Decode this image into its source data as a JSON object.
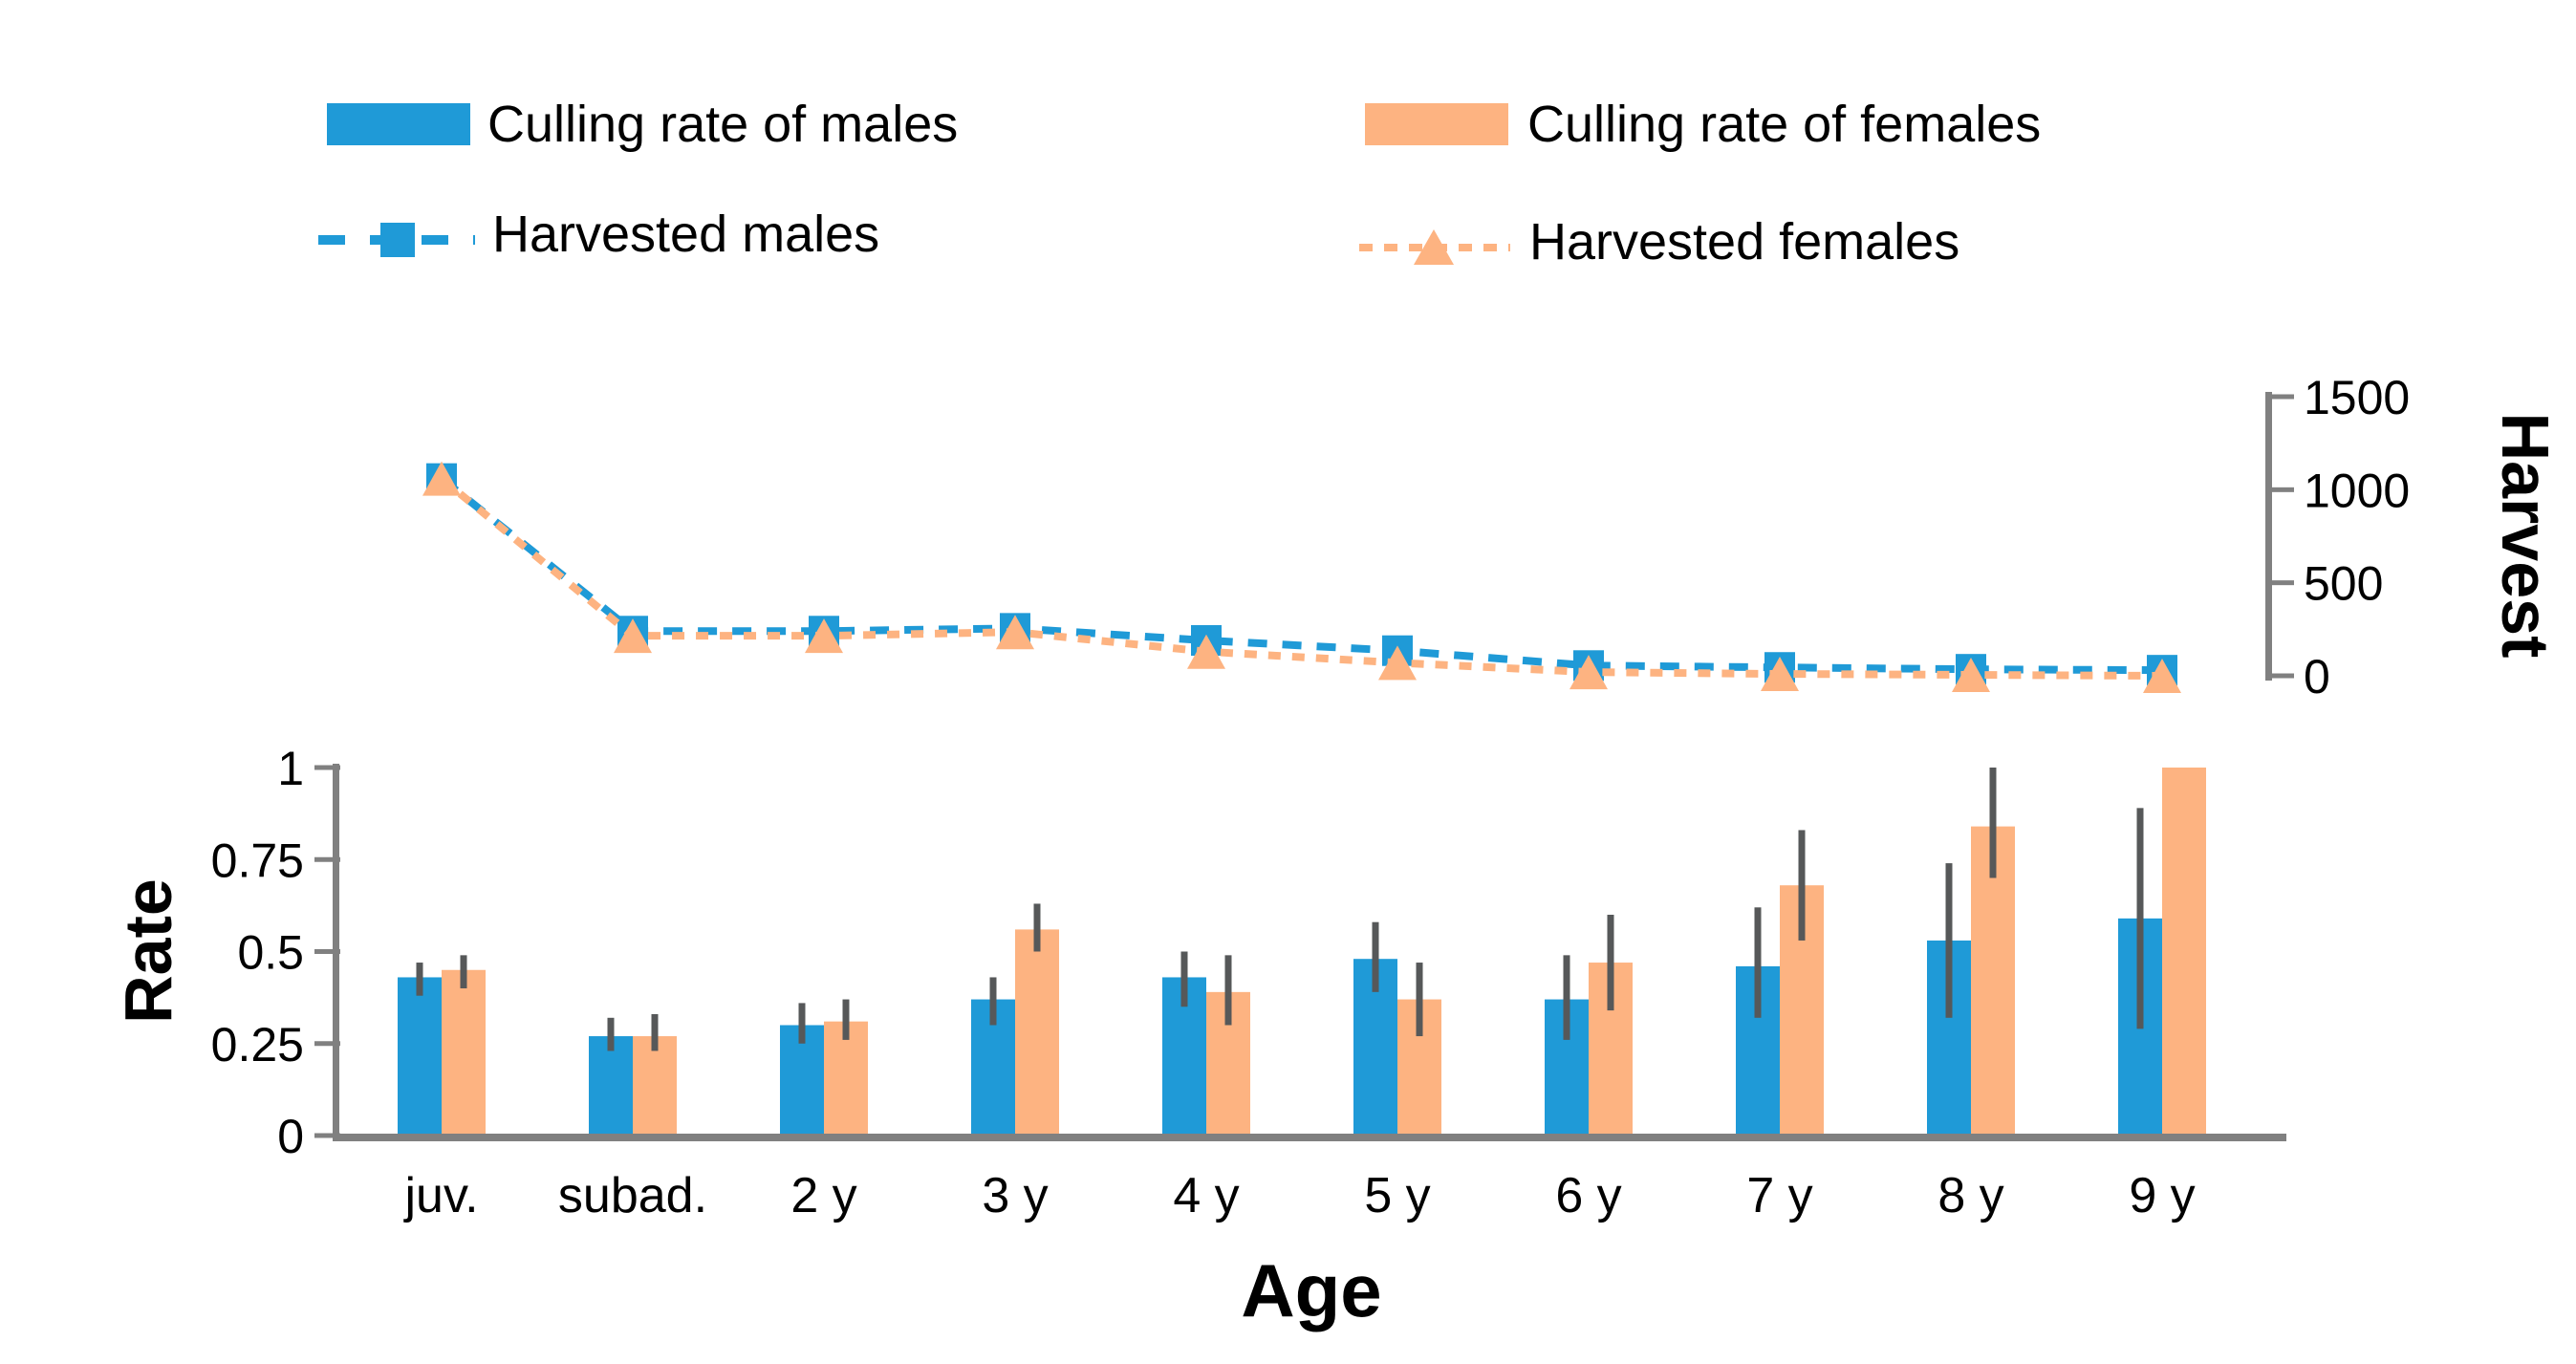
{
  "chart_data": {
    "type": "combo-bar-line",
    "categories": [
      "juv.",
      "subad.",
      "2 y",
      "3 y",
      "4 y",
      "5 y",
      "6 y",
      "7 y",
      "8 y",
      "9 y"
    ],
    "xlabel": "Age",
    "bar_panel": {
      "ylabel": "Rate",
      "ylim": [
        0,
        1
      ],
      "yticks": [
        0,
        0.25,
        0.5,
        0.75,
        1
      ],
      "ytick_labels": [
        "0",
        "0.25",
        "0.5",
        "0.75",
        "1"
      ],
      "grid": false,
      "series": [
        {
          "name": "Culling rate of males",
          "color": "#1f9ad7",
          "values": [
            0.43,
            0.27,
            0.3,
            0.37,
            0.43,
            0.48,
            0.37,
            0.46,
            0.53,
            0.59
          ],
          "err_low": [
            0.38,
            0.23,
            0.25,
            0.3,
            0.35,
            0.39,
            0.26,
            0.32,
            0.32,
            0.29
          ],
          "err_high": [
            0.47,
            0.32,
            0.36,
            0.43,
            0.5,
            0.58,
            0.49,
            0.62,
            0.74,
            0.89
          ]
        },
        {
          "name": "Culling rate of females",
          "color": "#fdb381",
          "values": [
            0.45,
            0.27,
            0.31,
            0.56,
            0.39,
            0.37,
            0.47,
            0.68,
            0.84,
            1.0
          ],
          "err_low": [
            0.4,
            0.23,
            0.26,
            0.5,
            0.3,
            0.27,
            0.34,
            0.53,
            0.7,
            null
          ],
          "err_high": [
            0.49,
            0.33,
            0.37,
            0.63,
            0.49,
            0.47,
            0.6,
            0.83,
            1.0,
            null
          ]
        }
      ]
    },
    "line_panel": {
      "ylabel": "Harvest",
      "ylim": [
        0,
        1500
      ],
      "yticks": [
        0,
        500,
        1000,
        1500
      ],
      "ytick_labels": [
        "0",
        "500",
        "1000",
        "1500"
      ],
      "grid": false,
      "series": [
        {
          "name": "Harvested males",
          "color": "#1f9ad7",
          "marker": "square",
          "line_style": "dashed",
          "values": [
            1060,
            240,
            240,
            255,
            190,
            135,
            55,
            45,
            35,
            30
          ]
        },
        {
          "name": "Harvested females",
          "color": "#fdb381",
          "marker": "triangle",
          "line_style": "dashed",
          "values": [
            1060,
            215,
            215,
            235,
            130,
            70,
            20,
            10,
            5,
            0
          ]
        }
      ]
    },
    "legend": {
      "position": "top",
      "items": [
        {
          "label": "Culling rate of males",
          "swatch": "bar",
          "color": "#1f9ad7"
        },
        {
          "label": "Culling rate of females",
          "swatch": "bar",
          "color": "#fdb381"
        },
        {
          "label": "Harvested males",
          "swatch": "dashed-line-square",
          "color": "#1f9ad7"
        },
        {
          "label": "Harvested females",
          "swatch": "dashed-line-triangle",
          "color": "#fdb381"
        }
      ]
    },
    "colors": {
      "error_bar": "#565859",
      "axis": "#808080",
      "text": "#000000",
      "background": "#ffffff"
    }
  }
}
